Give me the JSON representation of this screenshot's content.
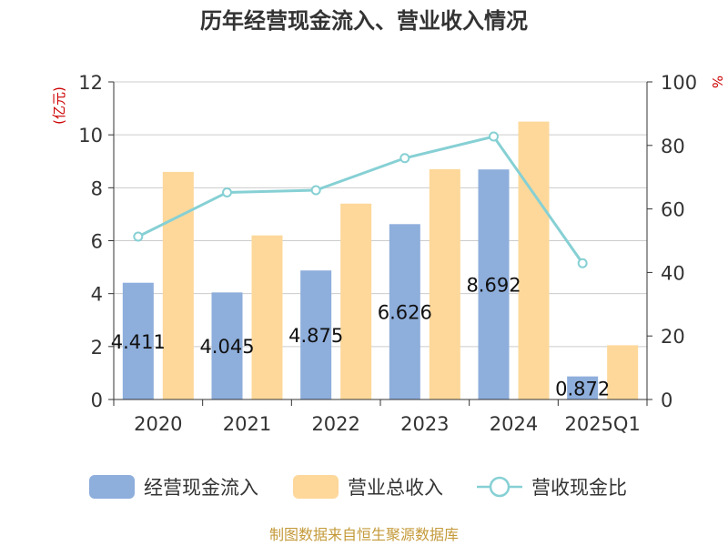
{
  "chart_data": {
    "type": "bar",
    "title": "历年经营现金流入、营业收入情况",
    "ylabel_left": "(亿元)",
    "ylabel_right": "%",
    "categories": [
      "2020",
      "2021",
      "2022",
      "2023",
      "2024",
      "2025Q1"
    ],
    "ylim_left": [
      0,
      12
    ],
    "ylim_right": [
      0,
      100
    ],
    "yticks_left": [
      "0",
      "2",
      "4",
      "6",
      "8",
      "10",
      "12"
    ],
    "yticks_right": [
      "0",
      "20",
      "40",
      "60",
      "80",
      "100"
    ],
    "grid": true,
    "legend_position": "bottom",
    "series": [
      {
        "name": "经营现金流入",
        "type": "bar",
        "axis": "left",
        "color": "#8eaedc",
        "values": [
          4.411,
          4.045,
          4.875,
          6.626,
          8.692,
          0.872
        ],
        "labels": [
          "4.411",
          "4.045",
          "4.875",
          "6.626",
          "8.692",
          "0.872"
        ]
      },
      {
        "name": "营业总收入",
        "type": "bar",
        "axis": "left",
        "color": "#fdd89a",
        "values": [
          8.6,
          6.2,
          7.4,
          8.7,
          10.5,
          2.05
        ]
      },
      {
        "name": "营收现金比",
        "type": "line",
        "axis": "right",
        "color": "#86d0d4",
        "values": [
          51.3,
          65.2,
          65.9,
          76.0,
          82.8,
          42.9
        ]
      }
    ],
    "source": "制图数据来自恒生聚源数据库"
  }
}
